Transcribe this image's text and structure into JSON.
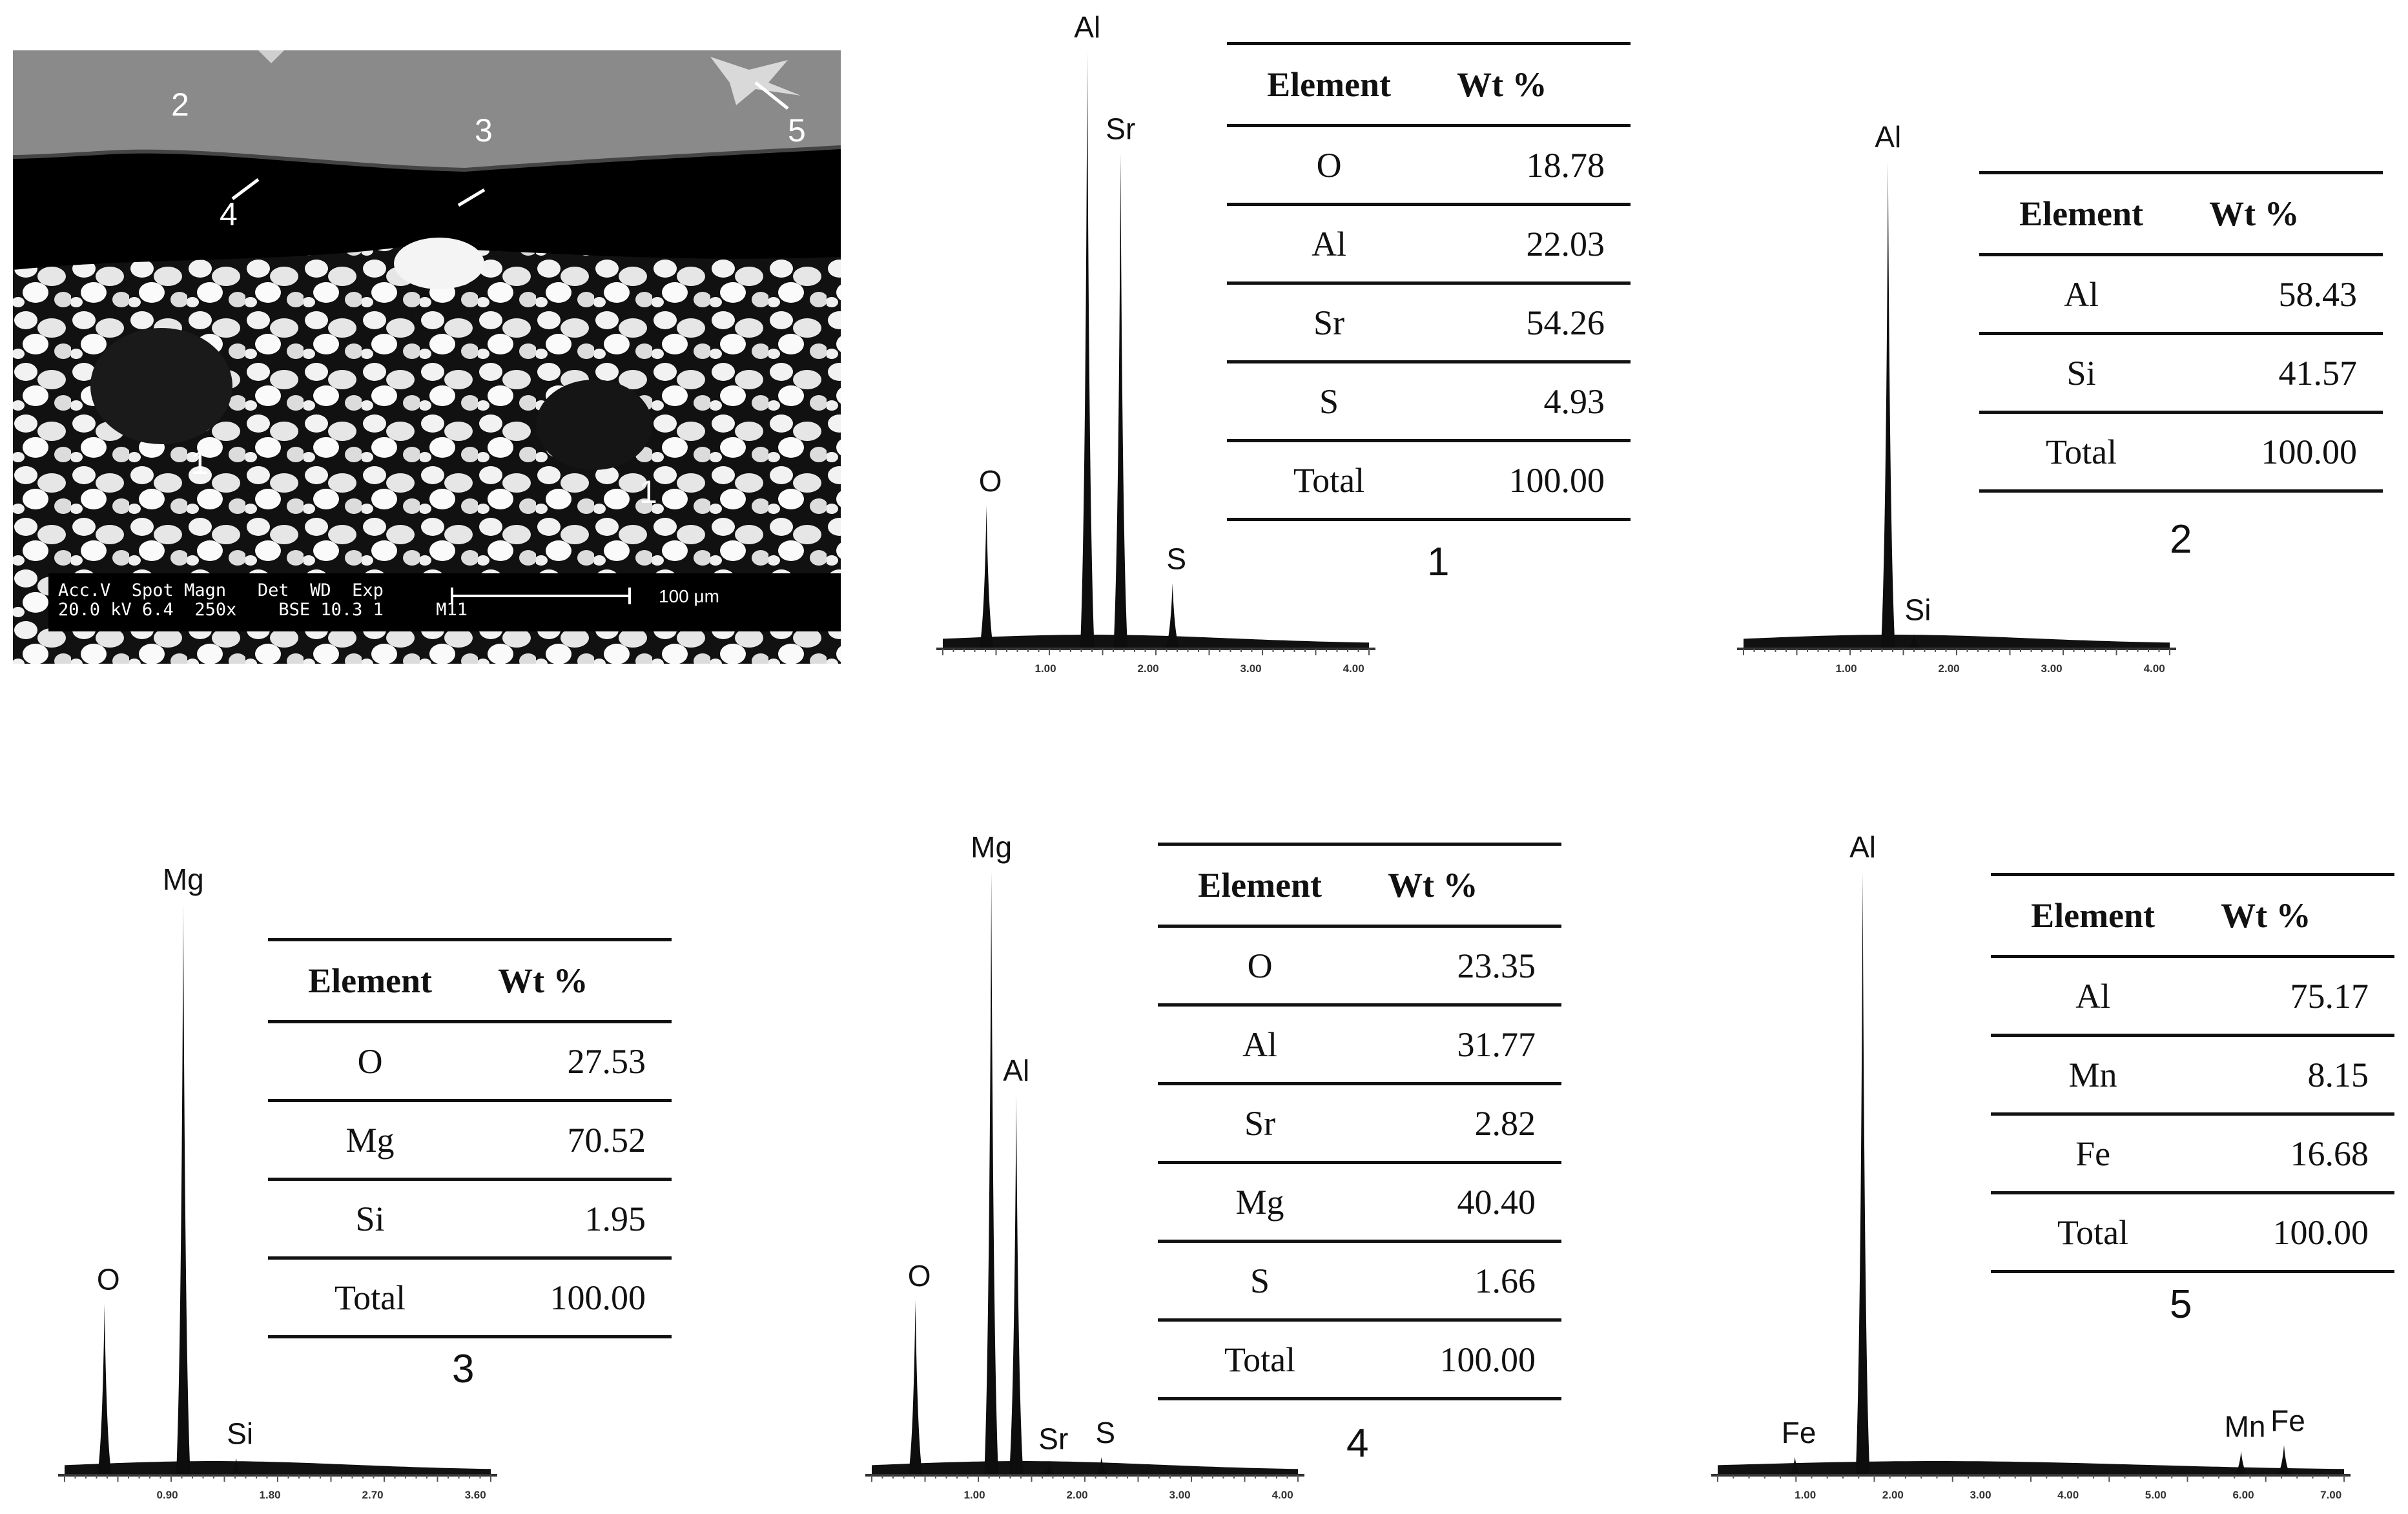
{
  "sem_image": {
    "point_labels": [
      "1",
      "1",
      "2",
      "3",
      "4",
      "5"
    ],
    "scale_bar_line1": "Acc.V  Spot Magn   Det  WD  Exp",
    "scale_bar_line2": "20.0 kV 6.4  250x    BSE 10.3 1     M11",
    "scale_bar_length": "100 μm"
  },
  "spectra": [
    {
      "id": "1",
      "x_ticks": [
        "1.00",
        "2.00",
        "3.00",
        "4.00"
      ],
      "peak_labels": [
        "O",
        "Al",
        "Sr",
        "S"
      ],
      "table": {
        "headers": [
          "Element",
          "Wt %"
        ],
        "rows": [
          [
            "O",
            "18.78"
          ],
          [
            "Al",
            "22.03"
          ],
          [
            "Sr",
            "54.26"
          ],
          [
            "S",
            "4.93"
          ],
          [
            "Total",
            "100.00"
          ]
        ]
      }
    },
    {
      "id": "2",
      "x_ticks": [
        "1.00",
        "2.00",
        "3.00",
        "4.00"
      ],
      "peak_labels": [
        "Al",
        "Si"
      ],
      "table": {
        "headers": [
          "Element",
          "Wt %"
        ],
        "rows": [
          [
            "Al",
            "58.43"
          ],
          [
            "Si",
            "41.57"
          ],
          [
            "Total",
            "100.00"
          ]
        ]
      }
    },
    {
      "id": "3",
      "x_ticks": [
        "0.90",
        "1.80",
        "2.70",
        "3.60"
      ],
      "peak_labels": [
        "O",
        "Mg",
        "Si"
      ],
      "table": {
        "headers": [
          "Element",
          "Wt %"
        ],
        "rows": [
          [
            "O",
            "27.53"
          ],
          [
            "Mg",
            "70.52"
          ],
          [
            "Si",
            "1.95"
          ],
          [
            "Total",
            "100.00"
          ]
        ]
      }
    },
    {
      "id": "4",
      "x_ticks": [
        "1.00",
        "2.00",
        "3.00",
        "4.00"
      ],
      "peak_labels": [
        "O",
        "Mg",
        "Al",
        "Sr",
        "S"
      ],
      "table": {
        "headers": [
          "Element",
          "Wt %"
        ],
        "rows": [
          [
            "O",
            "23.35"
          ],
          [
            "Al",
            "31.77"
          ],
          [
            "Sr",
            "2.82"
          ],
          [
            "Mg",
            "40.40"
          ],
          [
            "S",
            "1.66"
          ],
          [
            "Total",
            "100.00"
          ]
        ]
      }
    },
    {
      "id": "5",
      "x_ticks": [
        "1.00",
        "2.00",
        "3.00",
        "4.00",
        "5.00",
        "6.00",
        "7.00"
      ],
      "peak_labels": [
        "Fe",
        "Al",
        "Mn",
        "Fe"
      ],
      "table": {
        "headers": [
          "Element",
          "Wt %"
        ],
        "rows": [
          [
            "Al",
            "75.17"
          ],
          [
            "Mn",
            "8.15"
          ],
          [
            "Fe",
            "16.68"
          ],
          [
            "Total",
            "100.00"
          ]
        ]
      }
    }
  ],
  "chart_data": [
    {
      "type": "line",
      "title": "1",
      "x_ticks": [
        "1.00",
        "2.00",
        "3.00",
        "4.00"
      ],
      "xlim": [
        0.1,
        4.2
      ],
      "peaks": [
        {
          "label": "O",
          "x": 0.52,
          "rel_height": 0.24
        },
        {
          "label": "Al",
          "x": 1.49,
          "rel_height": 1.0
        },
        {
          "label": "Sr",
          "x": 1.81,
          "rel_height": 0.83
        },
        {
          "label": "S",
          "x": 2.31,
          "rel_height": 0.11
        }
      ]
    },
    {
      "type": "line",
      "title": "2",
      "x_ticks": [
        "1.00",
        "2.00",
        "3.00",
        "4.00"
      ],
      "xlim": [
        0.1,
        4.2
      ],
      "peaks": [
        {
          "label": "Al",
          "x": 1.49,
          "rel_height": 1.0
        },
        {
          "label": "Si",
          "x": 1.74,
          "rel_height": 0.03
        }
      ]
    },
    {
      "type": "line",
      "title": "3",
      "x_ticks": [
        "0.90",
        "1.80",
        "2.70",
        "3.60"
      ],
      "xlim": [
        0.15,
        4.1
      ],
      "peaks": [
        {
          "label": "O",
          "x": 0.52,
          "rel_height": 0.3
        },
        {
          "label": "Mg",
          "x": 1.25,
          "rel_height": 1.0
        },
        {
          "label": "Si",
          "x": 1.74,
          "rel_height": 0.03
        }
      ]
    },
    {
      "type": "line",
      "title": "4",
      "x_ticks": [
        "1.00",
        "2.00",
        "3.00",
        "4.00"
      ],
      "xlim": [
        0.1,
        4.2
      ],
      "peaks": [
        {
          "label": "O",
          "x": 0.52,
          "rel_height": 0.29
        },
        {
          "label": "Mg",
          "x": 1.25,
          "rel_height": 1.0
        },
        {
          "label": "Al",
          "x": 1.49,
          "rel_height": 0.63
        },
        {
          "label": "Sr",
          "x": 1.81,
          "rel_height": 0.02
        },
        {
          "label": "S",
          "x": 2.31,
          "rel_height": 0.03
        }
      ]
    },
    {
      "type": "line",
      "title": "5",
      "x_ticks": [
        "1.00",
        "2.00",
        "3.00",
        "4.00",
        "5.00",
        "6.00",
        "7.00"
      ],
      "xlim": [
        -0.2,
        7.1
      ],
      "peaks": [
        {
          "label": "Fe",
          "x": 0.7,
          "rel_height": 0.03
        },
        {
          "label": "Al",
          "x": 1.49,
          "rel_height": 1.0
        },
        {
          "label": "Mn",
          "x": 5.9,
          "rel_height": 0.04
        },
        {
          "label": "Fe",
          "x": 6.4,
          "rel_height": 0.05
        }
      ]
    }
  ]
}
